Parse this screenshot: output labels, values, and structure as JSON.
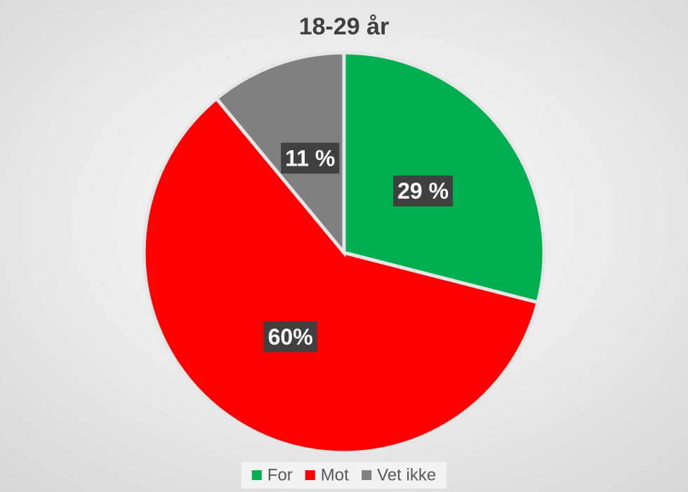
{
  "chart_data": {
    "type": "pie",
    "title": "18-29 år",
    "categories": [
      "For",
      "Mot",
      "Vet ikke"
    ],
    "values": [
      29,
      60,
      11
    ],
    "value_labels": [
      "29 %",
      "60%",
      "11 %"
    ],
    "colors": [
      "#00b050",
      "#ff0000",
      "#808080"
    ],
    "legend": "bottom"
  }
}
